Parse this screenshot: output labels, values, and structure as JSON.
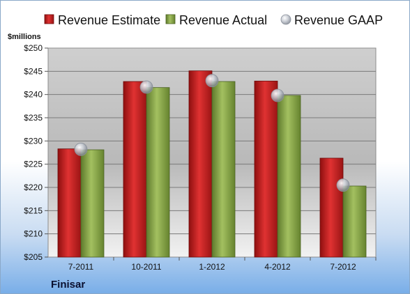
{
  "chart_data": {
    "type": "bar",
    "company": "Finisar",
    "ylabel": "$millions",
    "categories": [
      "7-2011",
      "10-2011",
      "1-2012",
      "4-2012",
      "7-2012"
    ],
    "ylim": [
      205,
      250
    ],
    "ytick_step": 5,
    "ytick_prefix": "$",
    "series": [
      {
        "name": "Revenue Estimate",
        "kind": "bar",
        "color": "#cc1f1f",
        "values": [
          228.3,
          242.8,
          245.1,
          242.9,
          226.3
        ]
      },
      {
        "name": "Revenue Actual",
        "kind": "bar",
        "color": "#8fac4a",
        "values": [
          228.1,
          241.5,
          242.8,
          239.8,
          220.3
        ]
      },
      {
        "name": "Revenue GAAP",
        "kind": "marker",
        "color": "#b8bec8",
        "values": [
          228.2,
          241.6,
          243.0,
          239.8,
          220.5
        ]
      }
    ],
    "grid": true,
    "legend": "top"
  }
}
